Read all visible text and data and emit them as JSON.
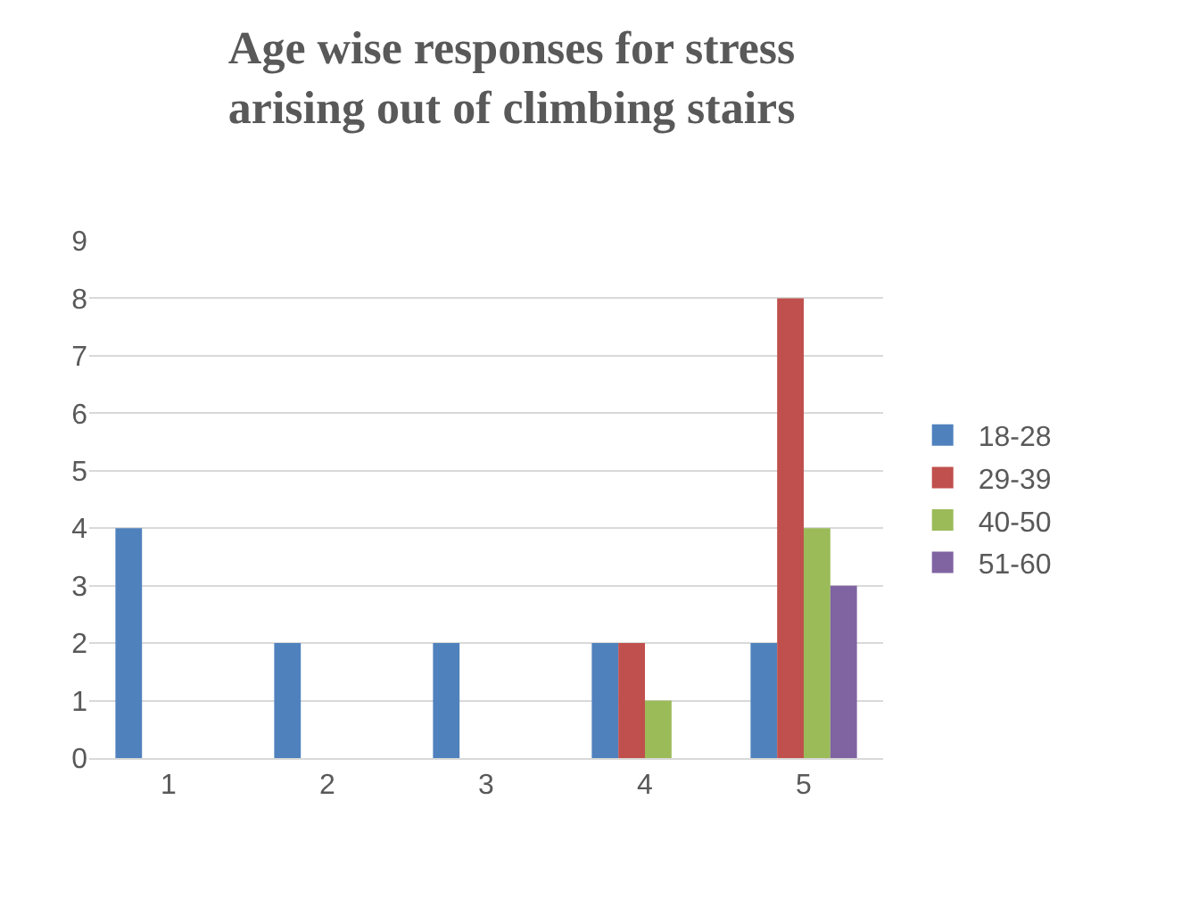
{
  "chart_data": {
    "type": "bar",
    "title": "Age wise responses for stress arising out of climbing stairs",
    "categories": [
      "1",
      "2",
      "3",
      "4",
      "5"
    ],
    "series": [
      {
        "name": "18-28",
        "color": "#4f81bd",
        "values": [
          4,
          2,
          2,
          2,
          2
        ]
      },
      {
        "name": "29-39",
        "color": "#c0504d",
        "values": [
          0,
          0,
          0,
          2,
          8
        ]
      },
      {
        "name": "40-50",
        "color": "#9bbb59",
        "values": [
          0,
          0,
          0,
          1,
          4
        ]
      },
      {
        "name": "51-60",
        "color": "#8064a2",
        "values": [
          0,
          0,
          0,
          0,
          3
        ]
      }
    ],
    "ylim": [
      0,
      9
    ],
    "yticks": [
      0,
      1,
      2,
      3,
      4,
      5,
      6,
      7,
      8,
      9
    ],
    "grid": "y",
    "legend": "right"
  }
}
